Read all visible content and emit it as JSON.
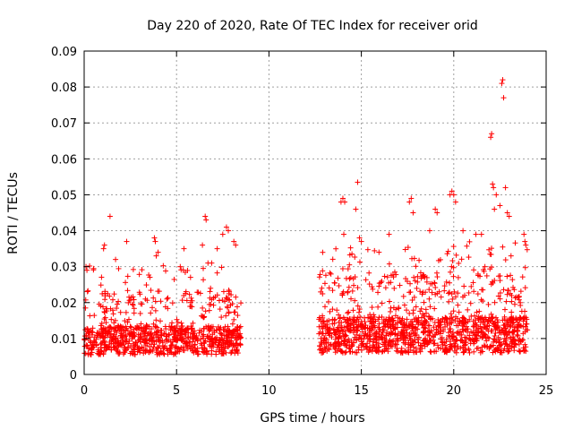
{
  "chart_data": {
    "type": "scatter",
    "title": "Day 220 of 2020, Rate Of TEC Index for receiver orid",
    "xlabel": "GPS time / hours",
    "ylabel": "ROTI / TECUs",
    "xlim": [
      0,
      25
    ],
    "ylim": [
      0,
      0.09
    ],
    "xticks": [
      "0",
      "5",
      "10",
      "15",
      "20",
      "25"
    ],
    "yticks": [
      "0",
      "0.01",
      "0.02",
      "0.03",
      "0.04",
      "0.05",
      "0.06",
      "0.07",
      "0.08",
      "0.09"
    ],
    "grid": true,
    "marker": "+",
    "series": [
      {
        "color": "#ff0000",
        "segments": [
          {
            "x_start": 0.0,
            "x_end": 8.5,
            "baseline": 0.0095,
            "spread": 0.004,
            "count": 900
          },
          {
            "x_start": 12.7,
            "x_end": 24.0,
            "baseline": 0.011,
            "spread": 0.005,
            "count": 1300
          }
        ],
        "points": [
          [
            0.1,
            0.03
          ],
          [
            0.15,
            0.029
          ],
          [
            1.4,
            0.044
          ],
          [
            1.05,
            0.035
          ],
          [
            1.1,
            0.036
          ],
          [
            1.7,
            0.032
          ],
          [
            2.3,
            0.037
          ],
          [
            3.8,
            0.038
          ],
          [
            3.85,
            0.037
          ],
          [
            3.9,
            0.033
          ],
          [
            4.0,
            0.034
          ],
          [
            5.2,
            0.03
          ],
          [
            5.4,
            0.035
          ],
          [
            6.4,
            0.036
          ],
          [
            6.55,
            0.044
          ],
          [
            6.6,
            0.043
          ],
          [
            6.7,
            0.031
          ],
          [
            6.9,
            0.031
          ],
          [
            7.2,
            0.035
          ],
          [
            7.5,
            0.039
          ],
          [
            7.7,
            0.041
          ],
          [
            7.8,
            0.04
          ],
          [
            8.1,
            0.037
          ],
          [
            8.2,
            0.036
          ],
          [
            13.9,
            0.048
          ],
          [
            14.0,
            0.049
          ],
          [
            14.1,
            0.048
          ],
          [
            14.05,
            0.039
          ],
          [
            14.7,
            0.046
          ],
          [
            14.8,
            0.0535
          ],
          [
            14.9,
            0.038
          ],
          [
            15.0,
            0.037
          ],
          [
            16.5,
            0.039
          ],
          [
            17.6,
            0.048
          ],
          [
            17.7,
            0.049
          ],
          [
            17.8,
            0.045
          ],
          [
            18.7,
            0.04
          ],
          [
            19.0,
            0.046
          ],
          [
            19.1,
            0.045
          ],
          [
            19.8,
            0.05
          ],
          [
            19.9,
            0.051
          ],
          [
            20.0,
            0.05
          ],
          [
            20.1,
            0.048
          ],
          [
            20.5,
            0.04
          ],
          [
            21.2,
            0.039
          ],
          [
            21.5,
            0.039
          ],
          [
            22.0,
            0.066
          ],
          [
            22.05,
            0.067
          ],
          [
            22.1,
            0.053
          ],
          [
            22.15,
            0.052
          ],
          [
            22.2,
            0.046
          ],
          [
            22.3,
            0.05
          ],
          [
            22.5,
            0.047
          ],
          [
            22.6,
            0.081
          ],
          [
            22.65,
            0.082
          ],
          [
            22.7,
            0.077
          ],
          [
            22.8,
            0.052
          ],
          [
            22.9,
            0.045
          ],
          [
            23.0,
            0.044
          ],
          [
            23.1,
            0.033
          ],
          [
            23.8,
            0.039
          ],
          [
            23.85,
            0.037
          ],
          [
            23.9,
            0.036
          ]
        ]
      }
    ]
  }
}
